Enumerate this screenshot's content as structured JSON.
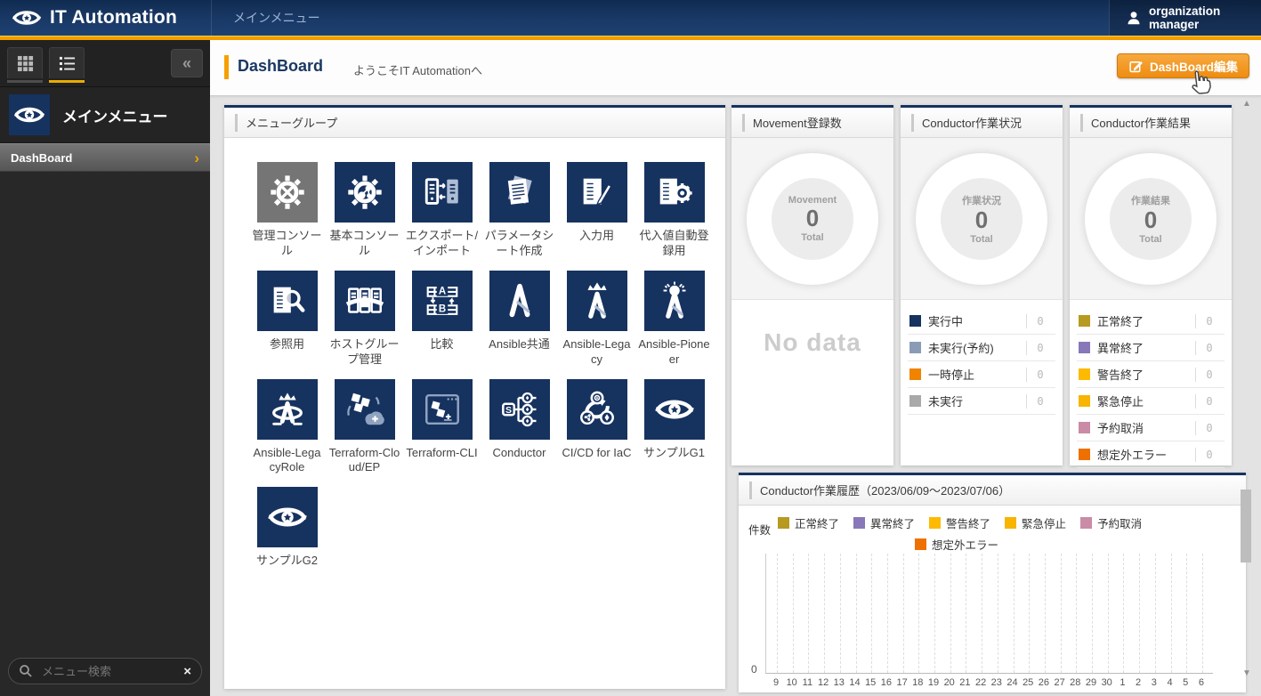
{
  "header": {
    "app_title": "IT Automation",
    "menu_tab": "メインメニュー",
    "user": "organization manager"
  },
  "sidebar": {
    "collapse_glyph": "«",
    "menu_title": "メインメニュー",
    "items": [
      {
        "label": "DashBoard"
      }
    ],
    "item_chevron_glyph": "›",
    "search_placeholder": "メニュー検索",
    "search_clear_glyph": "×"
  },
  "topbar": {
    "page_title": "DashBoard",
    "welcome": "ようこそIT Automationへ",
    "edit_button": "DashBoard編集"
  },
  "menu_group": {
    "title": "メニューグループ",
    "tile_navy": "#16325f",
    "tiles": [
      {
        "label": "管理コンソール",
        "icon": "admin-console",
        "bg": "#757575"
      },
      {
        "label": "基本コンソール",
        "icon": "basic-console",
        "bg": "#16325f"
      },
      {
        "label": "エクスポート/インポート",
        "icon": "export-import",
        "bg": "#16325f"
      },
      {
        "label": "パラメータシート作成",
        "icon": "parameter-sheet",
        "bg": "#16325f"
      },
      {
        "label": "入力用",
        "icon": "input-sheet",
        "bg": "#16325f"
      },
      {
        "label": "代入値自動登録用",
        "icon": "auto-register",
        "bg": "#16325f"
      },
      {
        "label": "参照用",
        "icon": "reference",
        "bg": "#16325f"
      },
      {
        "label": "ホストグループ管理",
        "icon": "host-group",
        "bg": "#16325f"
      },
      {
        "label": "比較",
        "icon": "compare",
        "bg": "#16325f"
      },
      {
        "label": "Ansible共通",
        "icon": "ansible-common",
        "bg": "#16325f"
      },
      {
        "label": "Ansible-Legacy",
        "icon": "ansible-legacy",
        "bg": "#16325f"
      },
      {
        "label": "Ansible-Pioneer",
        "icon": "ansible-pioneer",
        "bg": "#16325f"
      },
      {
        "label": "Ansible-LegacyRole",
        "icon": "ansible-legacyrole",
        "bg": "#16325f"
      },
      {
        "label": "Terraform-Cloud/EP",
        "icon": "terraform-cloud-ep",
        "bg": "#16325f"
      },
      {
        "label": "Terraform-CLI",
        "icon": "terraform-cli",
        "bg": "#16325f"
      },
      {
        "label": "Conductor",
        "icon": "conductor",
        "bg": "#16325f"
      },
      {
        "label": "CI/CD for IaC",
        "icon": "cicd-for-iac",
        "bg": "#16325f"
      },
      {
        "label": "サンプルG1",
        "icon": "ita-logo",
        "bg": "#16325f"
      },
      {
        "label": "サンプルG2",
        "icon": "ita-logo",
        "bg": "#16325f"
      }
    ]
  },
  "ui": {
    "scroll_up_glyph": "▲",
    "scroll_down_glyph": "▼",
    "accent_orange": "#f5a000",
    "navy": "#16325f"
  },
  "chart_data": [
    {
      "type": "pie",
      "title": "Movement登録数",
      "center": {
        "label": "Movement",
        "value": 0,
        "sub": "Total"
      },
      "empty_text": "No data",
      "segments": []
    },
    {
      "type": "pie",
      "title": "Conductor作業状況",
      "center": {
        "label": "作業状況",
        "value": 0,
        "sub": "Total"
      },
      "segments": [
        {
          "label": "実行中",
          "value": 0,
          "color": "#16325f"
        },
        {
          "label": "未実行(予約)",
          "value": 0,
          "color": "#8a9cb5"
        },
        {
          "label": "一時停止",
          "value": 0,
          "color": "#f08300"
        },
        {
          "label": "未実行",
          "value": 0,
          "color": "#a9a9a9"
        }
      ]
    },
    {
      "type": "pie",
      "title": "Conductor作業結果",
      "center": {
        "label": "作業結果",
        "value": 0,
        "sub": "Total"
      },
      "segments": [
        {
          "label": "正常終了",
          "value": 0,
          "color": "#b79a20"
        },
        {
          "label": "異常終了",
          "value": 0,
          "color": "#8877b9"
        },
        {
          "label": "警告終了",
          "value": 0,
          "color": "#fdba00"
        },
        {
          "label": "緊急停止",
          "value": 0,
          "color": "#f7b400"
        },
        {
          "label": "予約取消",
          "value": 0,
          "color": "#c98ba5"
        },
        {
          "label": "想定外エラー",
          "value": 0,
          "color": "#ee7000"
        }
      ]
    },
    {
      "type": "bar",
      "title": "Conductor作業履歴（2023/06/09～2023/07/06）",
      "ylabel": "件数",
      "ylim": [
        0,
        null
      ],
      "y_tick_labels": [
        "0"
      ],
      "grid": "dashed-vertical",
      "legend_position": "top",
      "categories": [
        9,
        10,
        11,
        12,
        13,
        14,
        15,
        16,
        17,
        18,
        19,
        20,
        21,
        22,
        23,
        24,
        25,
        26,
        27,
        28,
        29,
        30,
        1,
        2,
        3,
        4,
        5,
        6
      ],
      "series": [
        {
          "name": "正常終了",
          "color": "#b79a20",
          "values": [
            0,
            0,
            0,
            0,
            0,
            0,
            0,
            0,
            0,
            0,
            0,
            0,
            0,
            0,
            0,
            0,
            0,
            0,
            0,
            0,
            0,
            0,
            0,
            0,
            0,
            0,
            0,
            0
          ]
        },
        {
          "name": "異常終了",
          "color": "#8877b9",
          "values": [
            0,
            0,
            0,
            0,
            0,
            0,
            0,
            0,
            0,
            0,
            0,
            0,
            0,
            0,
            0,
            0,
            0,
            0,
            0,
            0,
            0,
            0,
            0,
            0,
            0,
            0,
            0,
            0
          ]
        },
        {
          "name": "警告終了",
          "color": "#fdba00",
          "values": [
            0,
            0,
            0,
            0,
            0,
            0,
            0,
            0,
            0,
            0,
            0,
            0,
            0,
            0,
            0,
            0,
            0,
            0,
            0,
            0,
            0,
            0,
            0,
            0,
            0,
            0,
            0,
            0
          ]
        },
        {
          "name": "緊急停止",
          "color": "#f7b400",
          "values": [
            0,
            0,
            0,
            0,
            0,
            0,
            0,
            0,
            0,
            0,
            0,
            0,
            0,
            0,
            0,
            0,
            0,
            0,
            0,
            0,
            0,
            0,
            0,
            0,
            0,
            0,
            0,
            0
          ]
        },
        {
          "name": "予約取消",
          "color": "#c98ba5",
          "values": [
            0,
            0,
            0,
            0,
            0,
            0,
            0,
            0,
            0,
            0,
            0,
            0,
            0,
            0,
            0,
            0,
            0,
            0,
            0,
            0,
            0,
            0,
            0,
            0,
            0,
            0,
            0,
            0
          ]
        },
        {
          "name": "想定外エラー",
          "color": "#ee7000",
          "values": [
            0,
            0,
            0,
            0,
            0,
            0,
            0,
            0,
            0,
            0,
            0,
            0,
            0,
            0,
            0,
            0,
            0,
            0,
            0,
            0,
            0,
            0,
            0,
            0,
            0,
            0,
            0,
            0
          ]
        }
      ]
    }
  ]
}
